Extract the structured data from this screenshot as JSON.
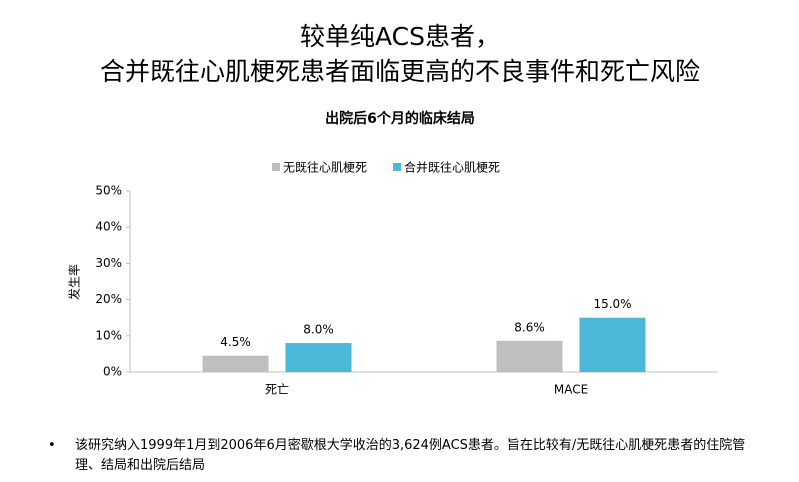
{
  "chart_data": {
    "type": "bar",
    "title": [
      "较单纯ACS患者，",
      "合并既往心肌梗死患者面临更高的不良事件和死亡风险"
    ],
    "subtitle": "出院后6个月的临床结局",
    "y_label": "发生率",
    "categories": [
      "死亡",
      "MACE"
    ],
    "series": [
      {
        "name": "无既往心肌梗死",
        "color": "#bfbfbf",
        "values": [
          4.5,
          8.6
        ],
        "value_labels": [
          "4.5%",
          "8.6%"
        ]
      },
      {
        "name": "合并既往心肌梗死",
        "color": "#4bb8d9",
        "values": [
          8.0,
          15.0
        ],
        "value_labels": [
          "8.0%",
          "15.0%"
        ]
      }
    ],
    "ylim": [
      0,
      50
    ],
    "yticks": [
      {
        "value": 0,
        "label": "0%"
      },
      {
        "value": 10,
        "label": "10%"
      },
      {
        "value": 20,
        "label": "20%"
      },
      {
        "value": 30,
        "label": "30%"
      },
      {
        "value": 40,
        "label": "40%"
      },
      {
        "value": 50,
        "label": "50%"
      }
    ],
    "grid": false,
    "legend": "top"
  },
  "footnote": "该研究纳入1999年1月到2006年6月密歇根大学收治的3,624例ACS患者。旨在比较有/无既往心肌梗死患者的住院管理、结局和出院后结局"
}
